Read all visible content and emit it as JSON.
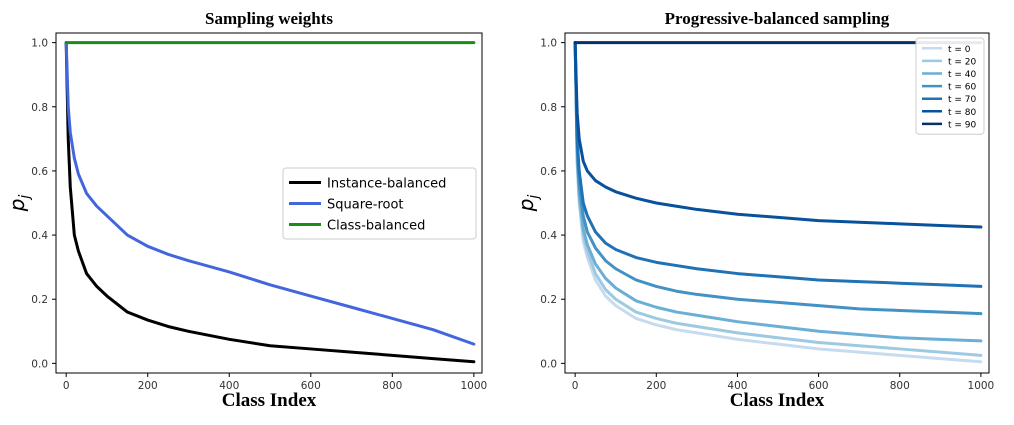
{
  "chart_data": [
    {
      "type": "line",
      "title": "Sampling weights",
      "xlabel": "Class Index",
      "ylabel": "p",
      "ylabel_sub": "j",
      "xlim": [
        -25,
        1020
      ],
      "ylim": [
        -0.03,
        1.03
      ],
      "xticks": [
        0,
        200,
        400,
        600,
        800,
        1000
      ],
      "yticks": [
        0.0,
        0.2,
        0.4,
        0.6,
        0.8,
        1.0
      ],
      "legend_position": "center-right",
      "series": [
        {
          "name": "Instance-balanced",
          "color": "#000000",
          "x": [
            0,
            5,
            10,
            20,
            30,
            50,
            75,
            100,
            150,
            200,
            250,
            300,
            400,
            500,
            600,
            700,
            800,
            900,
            1000
          ],
          "y": [
            1.0,
            0.7,
            0.55,
            0.4,
            0.35,
            0.28,
            0.24,
            0.21,
            0.16,
            0.135,
            0.115,
            0.1,
            0.075,
            0.055,
            0.045,
            0.035,
            0.025,
            0.015,
            0.005
          ]
        },
        {
          "name": "Square-root",
          "color": "#4466dd",
          "x": [
            0,
            5,
            10,
            20,
            30,
            50,
            75,
            100,
            150,
            200,
            250,
            300,
            400,
            500,
            600,
            700,
            800,
            900,
            1000
          ],
          "y": [
            1.0,
            0.8,
            0.72,
            0.64,
            0.59,
            0.53,
            0.49,
            0.46,
            0.4,
            0.365,
            0.34,
            0.32,
            0.285,
            0.245,
            0.21,
            0.175,
            0.14,
            0.105,
            0.06
          ]
        },
        {
          "name": "Class-balanced",
          "color": "#1a8c1a",
          "x": [
            0,
            1000
          ],
          "y": [
            1.0,
            1.0
          ]
        }
      ]
    },
    {
      "type": "line",
      "title": "Progressive-balanced sampling",
      "xlabel": "Class Index",
      "ylabel": "p",
      "ylabel_sub": "j",
      "xlim": [
        -25,
        1020
      ],
      "ylim": [
        -0.03,
        1.03
      ],
      "xticks": [
        0,
        200,
        400,
        600,
        800,
        1000
      ],
      "yticks": [
        0.0,
        0.2,
        0.4,
        0.6,
        0.8,
        1.0
      ],
      "legend_position": "top-right",
      "series": [
        {
          "name": "t = 0",
          "color": "#c6dbef",
          "x": [
            0,
            5,
            10,
            20,
            30,
            50,
            75,
            100,
            150,
            200,
            250,
            300,
            400,
            500,
            600,
            700,
            800,
            900,
            1000
          ],
          "y": [
            1.0,
            0.62,
            0.5,
            0.38,
            0.33,
            0.26,
            0.21,
            0.18,
            0.14,
            0.12,
            0.105,
            0.095,
            0.075,
            0.06,
            0.045,
            0.035,
            0.025,
            0.015,
            0.005
          ]
        },
        {
          "name": "t = 20",
          "color": "#9ecae1",
          "x": [
            0,
            5,
            10,
            20,
            30,
            50,
            75,
            100,
            150,
            200,
            250,
            300,
            400,
            500,
            600,
            700,
            800,
            900,
            1000
          ],
          "y": [
            1.0,
            0.63,
            0.51,
            0.4,
            0.35,
            0.28,
            0.23,
            0.2,
            0.16,
            0.14,
            0.125,
            0.115,
            0.095,
            0.08,
            0.065,
            0.055,
            0.045,
            0.035,
            0.025
          ]
        },
        {
          "name": "t = 40",
          "color": "#6baed6",
          "x": [
            0,
            5,
            10,
            20,
            30,
            50,
            75,
            100,
            150,
            200,
            250,
            300,
            400,
            500,
            600,
            700,
            800,
            900,
            1000
          ],
          "y": [
            1.0,
            0.65,
            0.53,
            0.42,
            0.37,
            0.31,
            0.265,
            0.235,
            0.195,
            0.175,
            0.16,
            0.15,
            0.13,
            0.115,
            0.1,
            0.09,
            0.08,
            0.075,
            0.07
          ]
        },
        {
          "name": "t = 60",
          "color": "#4292c6",
          "x": [
            0,
            5,
            10,
            20,
            30,
            50,
            75,
            100,
            150,
            200,
            250,
            300,
            400,
            500,
            600,
            700,
            800,
            900,
            1000
          ],
          "y": [
            1.0,
            0.67,
            0.56,
            0.46,
            0.41,
            0.36,
            0.32,
            0.295,
            0.26,
            0.24,
            0.225,
            0.215,
            0.2,
            0.19,
            0.18,
            0.17,
            0.165,
            0.16,
            0.155
          ]
        },
        {
          "name": "t = 70",
          "color": "#2171b5",
          "x": [
            0,
            5,
            10,
            20,
            30,
            50,
            75,
            100,
            150,
            200,
            250,
            300,
            400,
            500,
            600,
            700,
            800,
            900,
            1000
          ],
          "y": [
            1.0,
            0.7,
            0.6,
            0.5,
            0.46,
            0.41,
            0.375,
            0.355,
            0.33,
            0.315,
            0.305,
            0.295,
            0.28,
            0.27,
            0.26,
            0.255,
            0.25,
            0.245,
            0.24
          ]
        },
        {
          "name": "t = 80",
          "color": "#08519c",
          "x": [
            0,
            5,
            10,
            20,
            30,
            50,
            75,
            100,
            150,
            200,
            250,
            300,
            400,
            500,
            600,
            700,
            800,
            900,
            1000
          ],
          "y": [
            1.0,
            0.78,
            0.7,
            0.63,
            0.6,
            0.57,
            0.55,
            0.535,
            0.515,
            0.5,
            0.49,
            0.48,
            0.465,
            0.455,
            0.445,
            0.44,
            0.435,
            0.43,
            0.425
          ]
        },
        {
          "name": "t = 90",
          "color": "#08306b",
          "x": [
            0,
            1000
          ],
          "y": [
            1.0,
            1.0
          ]
        }
      ]
    }
  ]
}
